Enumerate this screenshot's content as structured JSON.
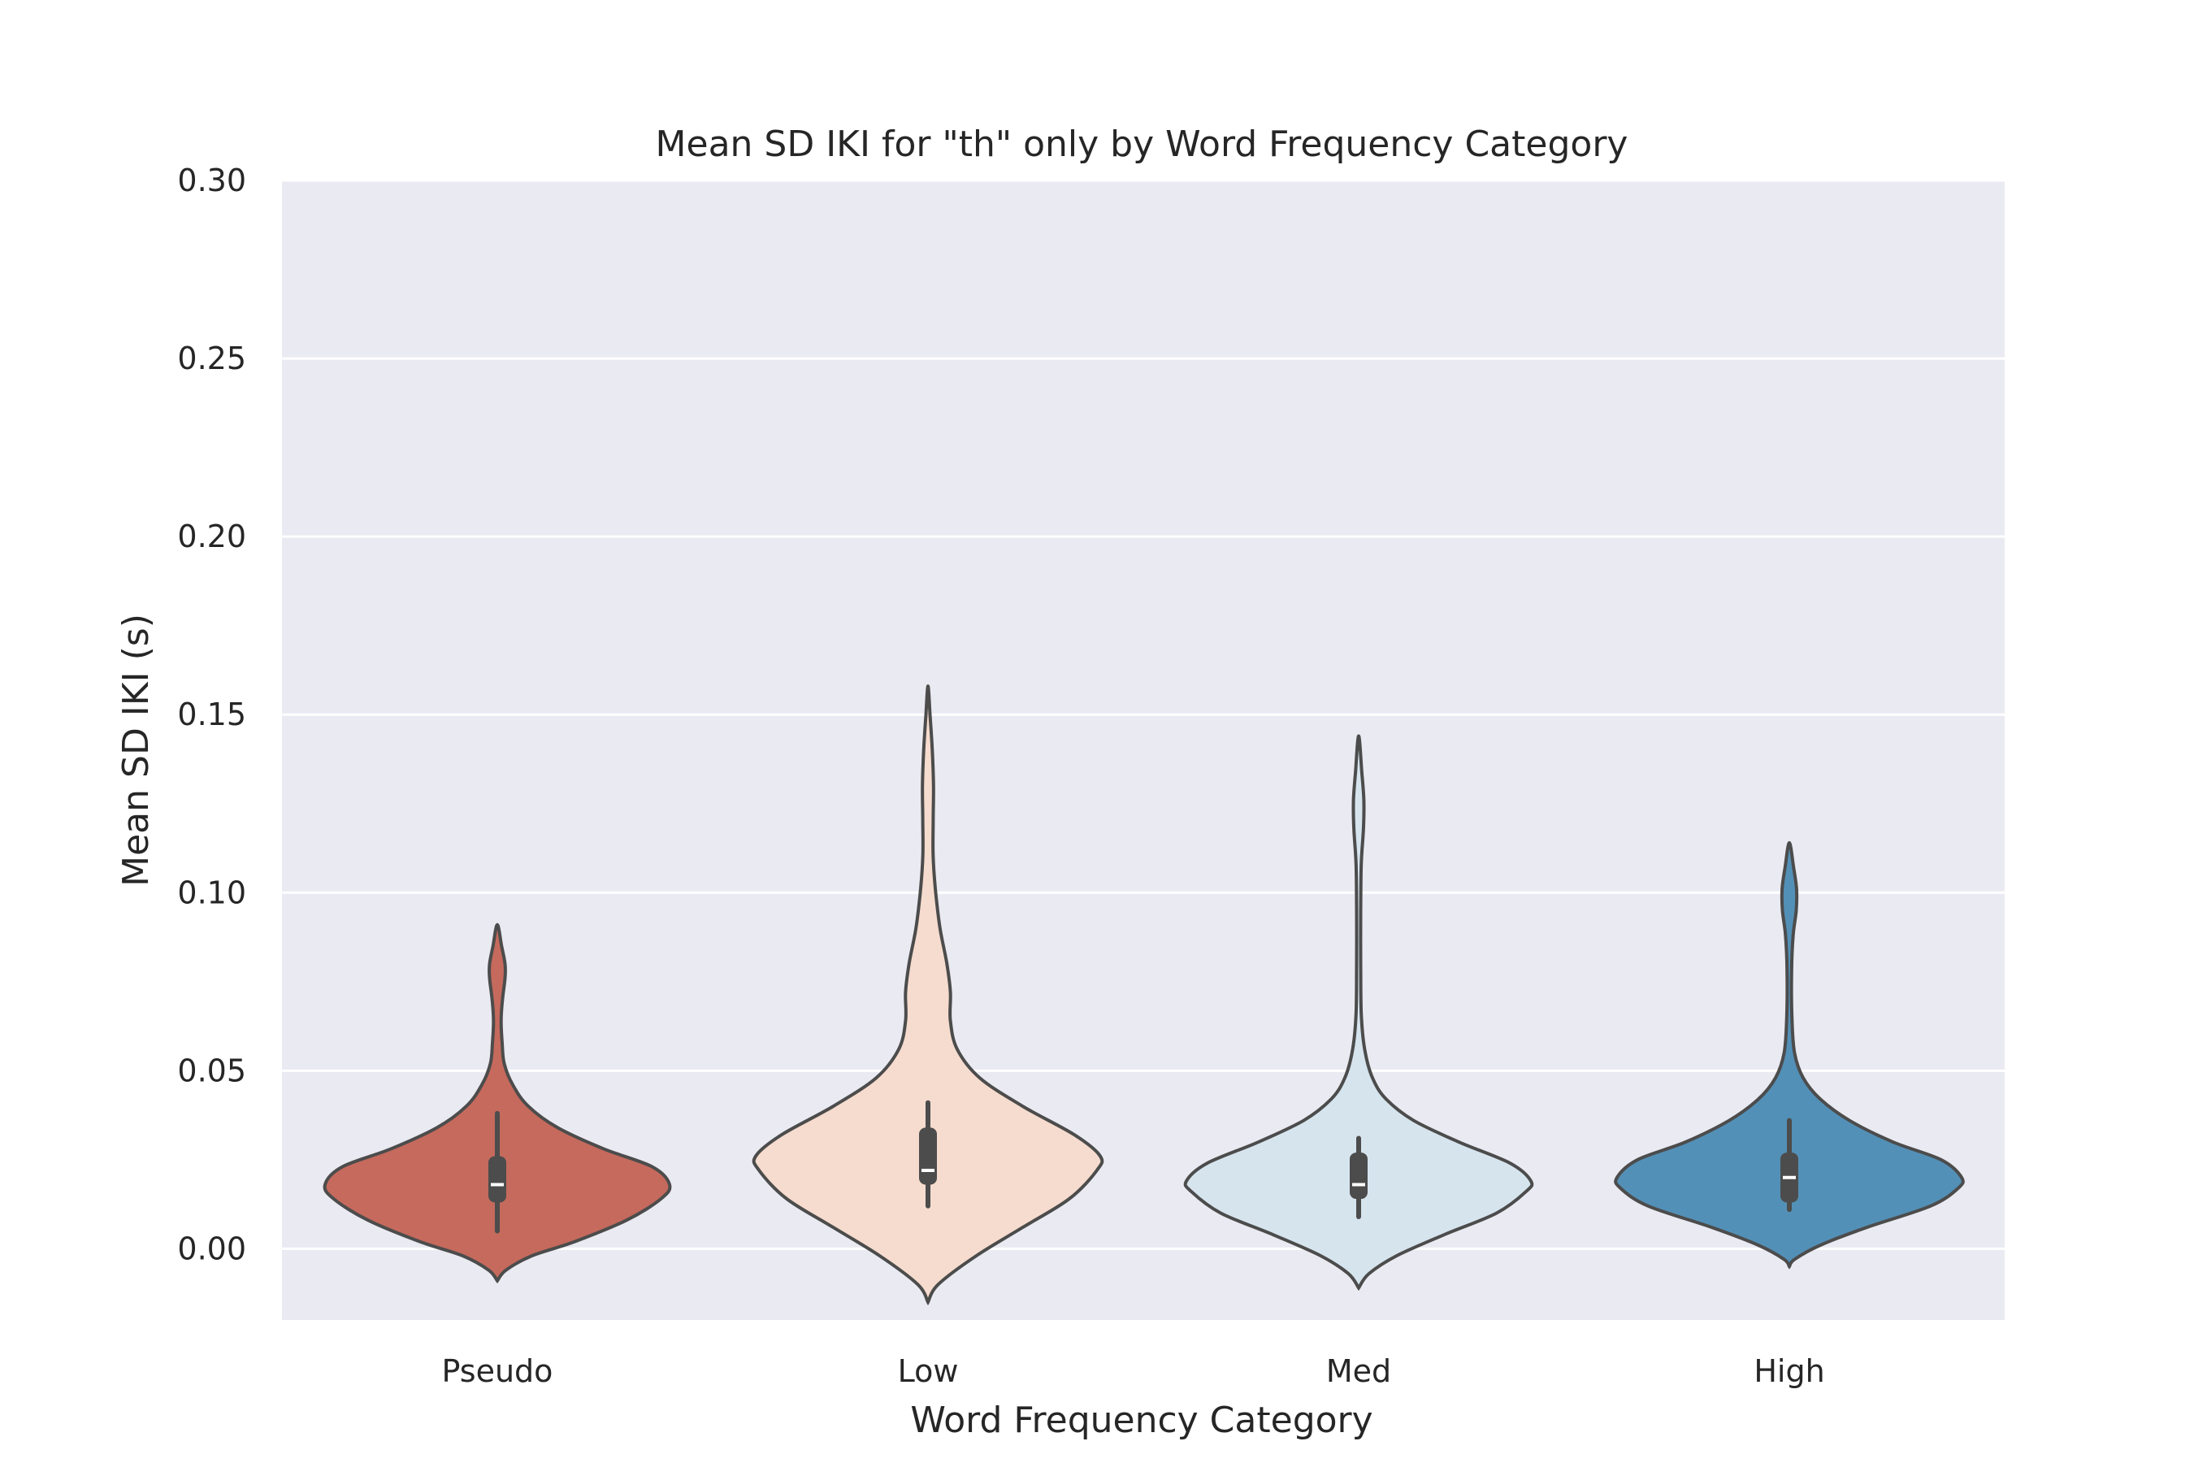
{
  "chart_data": {
    "type": "violin",
    "title": "Mean SD IKI for \"th\" only by Word Frequency Category",
    "xlabel": "Word Frequency Category",
    "ylabel": "Mean SD IKI (s)",
    "ylim": [
      -0.02,
      0.3
    ],
    "yticks": [
      0.0,
      0.05,
      0.1,
      0.15,
      0.2,
      0.25,
      0.3
    ],
    "ytick_labels": [
      "0.00",
      "0.05",
      "0.10",
      "0.15",
      "0.20",
      "0.25",
      "0.30"
    ],
    "categories": [
      "Pseudo",
      "Low",
      "Med",
      "High"
    ],
    "grid": true,
    "legend": "none",
    "series": [
      {
        "category": "Pseudo",
        "color": "#c56a5d",
        "min": -0.009,
        "max": 0.091,
        "q1": 0.013,
        "median": 0.018,
        "q3": 0.026,
        "whisker_low": 0.005,
        "whisker_high": 0.038,
        "density": [
          [
            -0.009,
            0.0
          ],
          [
            -0.006,
            0.05
          ],
          [
            -0.002,
            0.2
          ],
          [
            0.002,
            0.45
          ],
          [
            0.008,
            0.75
          ],
          [
            0.014,
            0.95
          ],
          [
            0.018,
            1.0
          ],
          [
            0.023,
            0.9
          ],
          [
            0.028,
            0.62
          ],
          [
            0.034,
            0.35
          ],
          [
            0.04,
            0.18
          ],
          [
            0.046,
            0.09
          ],
          [
            0.052,
            0.04
          ],
          [
            0.058,
            0.028
          ],
          [
            0.064,
            0.022
          ],
          [
            0.07,
            0.03
          ],
          [
            0.076,
            0.045
          ],
          [
            0.08,
            0.045
          ],
          [
            0.085,
            0.025
          ],
          [
            0.091,
            0.0
          ]
        ]
      },
      {
        "category": "Low",
        "color": "#f6dcce",
        "min": -0.015,
        "max": 0.158,
        "q1": 0.018,
        "median": 0.022,
        "q3": 0.034,
        "whisker_low": 0.012,
        "whisker_high": 0.041,
        "density": [
          [
            -0.015,
            0.0
          ],
          [
            -0.01,
            0.06
          ],
          [
            -0.002,
            0.28
          ],
          [
            0.006,
            0.55
          ],
          [
            0.014,
            0.82
          ],
          [
            0.022,
            0.98
          ],
          [
            0.026,
            1.0
          ],
          [
            0.032,
            0.85
          ],
          [
            0.04,
            0.55
          ],
          [
            0.048,
            0.3
          ],
          [
            0.056,
            0.17
          ],
          [
            0.064,
            0.13
          ],
          [
            0.072,
            0.13
          ],
          [
            0.08,
            0.11
          ],
          [
            0.09,
            0.07
          ],
          [
            0.1,
            0.045
          ],
          [
            0.11,
            0.03
          ],
          [
            0.12,
            0.03
          ],
          [
            0.13,
            0.032
          ],
          [
            0.14,
            0.025
          ],
          [
            0.15,
            0.012
          ],
          [
            0.158,
            0.0
          ]
        ]
      },
      {
        "category": "Med",
        "color": "#d6e4ee",
        "min": -0.011,
        "max": 0.144,
        "q1": 0.014,
        "median": 0.018,
        "q3": 0.027,
        "whisker_low": 0.009,
        "whisker_high": 0.031,
        "density": [
          [
            -0.011,
            0.0
          ],
          [
            -0.007,
            0.06
          ],
          [
            -0.002,
            0.22
          ],
          [
            0.004,
            0.5
          ],
          [
            0.01,
            0.8
          ],
          [
            0.016,
            0.97
          ],
          [
            0.019,
            1.0
          ],
          [
            0.024,
            0.88
          ],
          [
            0.03,
            0.58
          ],
          [
            0.036,
            0.32
          ],
          [
            0.042,
            0.16
          ],
          [
            0.048,
            0.08
          ],
          [
            0.056,
            0.035
          ],
          [
            0.066,
            0.015
          ],
          [
            0.08,
            0.012
          ],
          [
            0.095,
            0.012
          ],
          [
            0.108,
            0.015
          ],
          [
            0.118,
            0.028
          ],
          [
            0.126,
            0.03
          ],
          [
            0.134,
            0.018
          ],
          [
            0.144,
            0.0
          ]
        ]
      },
      {
        "category": "High",
        "color": "#5390b7",
        "min": -0.005,
        "max": 0.114,
        "q1": 0.013,
        "median": 0.02,
        "q3": 0.027,
        "whisker_low": 0.011,
        "whisker_high": 0.036,
        "density": [
          [
            -0.005,
            0.0
          ],
          [
            -0.003,
            0.03
          ],
          [
            0.001,
            0.18
          ],
          [
            0.006,
            0.45
          ],
          [
            0.012,
            0.82
          ],
          [
            0.017,
            0.98
          ],
          [
            0.02,
            1.0
          ],
          [
            0.025,
            0.88
          ],
          [
            0.03,
            0.6
          ],
          [
            0.036,
            0.35
          ],
          [
            0.042,
            0.18
          ],
          [
            0.048,
            0.08
          ],
          [
            0.055,
            0.03
          ],
          [
            0.065,
            0.015
          ],
          [
            0.078,
            0.013
          ],
          [
            0.088,
            0.022
          ],
          [
            0.095,
            0.04
          ],
          [
            0.101,
            0.042
          ],
          [
            0.107,
            0.025
          ],
          [
            0.114,
            0.0
          ]
        ]
      }
    ]
  }
}
